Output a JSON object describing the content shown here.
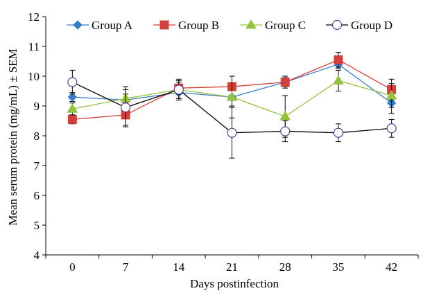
{
  "chart_data": {
    "type": "line",
    "xlabel": "Days postinfection",
    "ylabel": "Mean serum protein (mg/mL) ± SEM",
    "categories": [
      "0",
      "7",
      "14",
      "21",
      "28",
      "35",
      "42"
    ],
    "ylim": [
      4,
      12
    ],
    "yticks": [
      "4",
      "5",
      "6",
      "7",
      "8",
      "9",
      "10",
      "11",
      "12"
    ],
    "grid": false,
    "legend_position": "top",
    "series": [
      {
        "name": "Group A",
        "color": "#3a7cc3",
        "marker": "diamond",
        "values": [
          9.3,
          9.2,
          9.45,
          9.3,
          9.8,
          10.4,
          9.1
        ],
        "errors": [
          0.15,
          0.2,
          0.2,
          0.3,
          0.15,
          0.15,
          0.35
        ]
      },
      {
        "name": "Group B",
        "color": "#d2403b",
        "marker": "square",
        "values": [
          8.55,
          8.7,
          9.6,
          9.65,
          9.8,
          10.55,
          9.55
        ],
        "errors": [
          0.15,
          0.4,
          0.2,
          0.35,
          0.2,
          0.25,
          0.35
        ]
      },
      {
        "name": "Group C",
        "color": "#92c23f",
        "marker": "triangle",
        "values": [
          8.9,
          9.25,
          9.55,
          9.3,
          8.65,
          9.85,
          9.35
        ],
        "errors": [
          0.2,
          0.4,
          0.3,
          0.7,
          0.7,
          0.35,
          0.4
        ]
      },
      {
        "name": "Group D",
        "color": "#000000",
        "markerColor": "#5b3e8e",
        "marker": "circle-open",
        "values": [
          9.8,
          8.95,
          9.55,
          8.1,
          8.15,
          8.1,
          8.25
        ],
        "errors": [
          0.4,
          0.6,
          0.35,
          0.85,
          0.35,
          0.3,
          0.3
        ]
      }
    ]
  }
}
